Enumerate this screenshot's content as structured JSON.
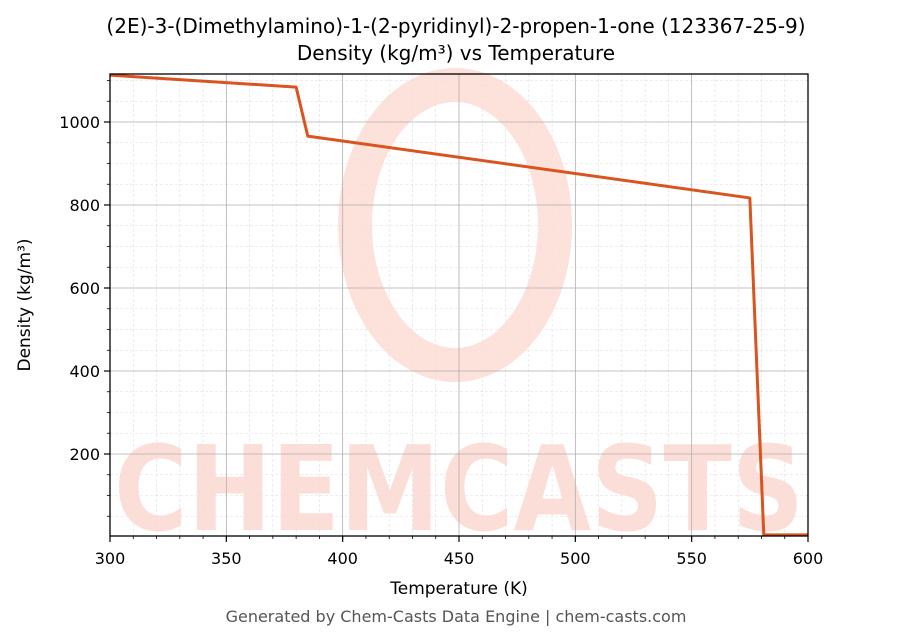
{
  "title_line1": "(2E)-3-(Dimethylamino)-1-(2-pyridinyl)-2-propen-1-one (123367-25-9)",
  "title_line2": "Density (kg/m³) vs Temperature",
  "footer": "Generated by Chem-Casts Data Engine | chem-casts.com",
  "watermark": "CHEMCASTS",
  "colors": {
    "line": "#d9541e",
    "watermark": "#fcd9d2",
    "grid_major": "#b0b0b0",
    "grid_minor": "#dddddd"
  },
  "chart_data": {
    "type": "line",
    "title": "(2E)-3-(Dimethylamino)-1-(2-pyridinyl)-2-propen-1-one (123367-25-9)\nDensity (kg/m³) vs Temperature",
    "xlabel": "Temperature (K)",
    "ylabel": "Density (kg/m³)",
    "xlim": [
      300,
      600
    ],
    "ylim": [
      5,
      1115
    ],
    "xticks": [
      300,
      350,
      400,
      450,
      500,
      550,
      600
    ],
    "yticks": [
      200,
      400,
      600,
      800,
      1000
    ],
    "grid": true,
    "legend": null,
    "series": [
      {
        "name": "Density",
        "x": [
          300,
          380,
          385,
          575,
          581,
          600
        ],
        "y": [
          1113,
          1084,
          966,
          817,
          5,
          5
        ]
      }
    ]
  }
}
